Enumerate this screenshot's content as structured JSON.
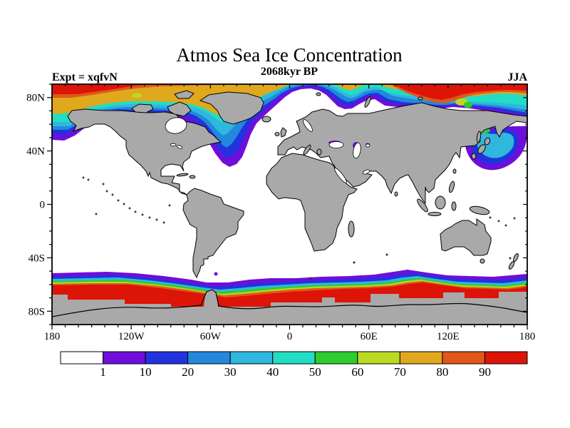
{
  "figure": {
    "title": "Atmos Sea Ice Concentration",
    "subtitle": "2068kyr BP",
    "experiment_label": "Expt = xqfvN",
    "season_label": "JJA"
  },
  "axes": {
    "x_tick_labels": [
      "180",
      "120W",
      "60W",
      "0",
      "60E",
      "120E",
      "180"
    ],
    "y_tick_labels": [
      "80N",
      "40N",
      "0",
      "40S",
      "80S"
    ]
  },
  "colorbar": {
    "tick_labels": [
      "1",
      "10",
      "20",
      "30",
      "40",
      "50",
      "60",
      "70",
      "80",
      "90"
    ],
    "colors": [
      "#ffffff",
      "#6e0edb",
      "#2233dd",
      "#2288dd",
      "#2fb7de",
      "#22ddc4",
      "#2ecc2e",
      "#b9d922",
      "#e0a81c",
      "#e0581a",
      "#dd1408"
    ]
  },
  "map": {
    "land_color": "#a9a9a9",
    "coastline_color": "#000000",
    "ocean_color": "#ffffff"
  },
  "chart_data": {
    "type": "heatmap",
    "title": "Atmos Sea Ice Concentration",
    "subtitle": "2068kyr BP",
    "experiment": "xqfvN",
    "season": "JJA",
    "variable": "sea ice concentration",
    "units": "percent",
    "projection": "equirectangular world map, lon -180..180 (x), lat 90..-90 (y)",
    "contour_levels": [
      1,
      10,
      20,
      30,
      40,
      50,
      60,
      70,
      80,
      90
    ],
    "level_colors": [
      "#ffffff",
      "#6e0edb",
      "#2233dd",
      "#2288dd",
      "#2fb7de",
      "#22ddc4",
      "#2ecc2e",
      "#b9d922",
      "#e0a81c",
      "#e0581a",
      "#dd1408"
    ],
    "x_ticks_deg": [
      -180,
      -120,
      -60,
      0,
      60,
      120,
      180
    ],
    "y_ticks_deg": [
      80,
      40,
      0,
      -40,
      -80
    ],
    "legend_position": "horizontal colorbar below map",
    "grid": false,
    "regions": [
      {
        "name": "central-arctic-pack-ice",
        "extent": "75N-90N, all longitudes",
        "value": "90-100% (red), 80-90% orange rim"
      },
      {
        "name": "arctic-coastal-fringe",
        "extent": "thin yellow/green/cyan bands along N. Alaska, Canada and Siberia coasts",
        "value": "10-70%"
      },
      {
        "name": "bering-chukchi-margin",
        "extent": "165E-160W near 55N-70N",
        "value": "1-30% (purple/blue) hugging coasts"
      },
      {
        "name": "baffin-bay-labrador-sea",
        "extent": "65W-45W, 50N-75N",
        "value": "1-50% tongue (purple/blue/cyan) extending south"
      },
      {
        "name": "north-atlantic-notch",
        "extent": "20W-30E, 60N-80N (Greenland/Norwegian/Barents Seas)",
        "value": "0% ice-free open water reaching ~80N"
      },
      {
        "name": "sea-of-okhotsk-nw-pacific",
        "extent": "140E-180, 45N-60N",
        "value": "1-50% (purple/blue/cyan) blob"
      },
      {
        "name": "mid-latitudes-and-tropics",
        "extent": "50S-55N oceans",
        "value": "0% (white)"
      },
      {
        "name": "southern-ocean-circumpolar-band",
        "extent": "52S-70S all longitudes",
        "value": "1-100%, increasing poleward: purple/blue/cyan/green/yellow/orange then >90% red adjacent to Antarctica; red belt widest 180W-120W"
      },
      {
        "name": "antarctica-and-land",
        "extent": "continents",
        "value": "masked gray land with black coastlines"
      }
    ]
  }
}
